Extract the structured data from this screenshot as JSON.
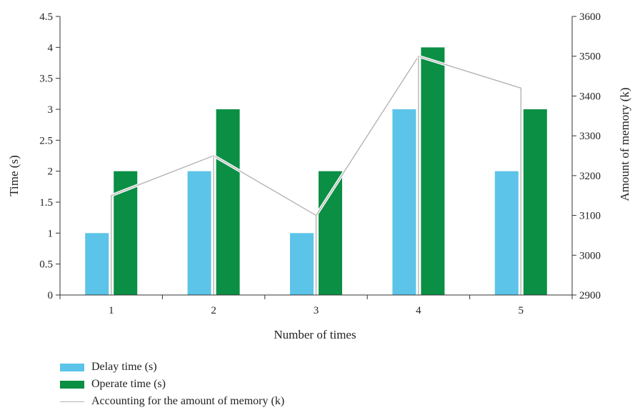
{
  "chart_data": {
    "type": "bar",
    "categories": [
      "1",
      "2",
      "3",
      "4",
      "5"
    ],
    "xlabel": "Number of times",
    "ylabel": "Time (s)",
    "y2label": "Amount of memory (k)",
    "ylim": [
      0,
      4.5
    ],
    "yticks": [
      "0",
      "0.5",
      "1",
      "1.5",
      "2",
      "2.5",
      "3",
      "3.5",
      "4",
      "4.5"
    ],
    "y2lim": [
      2900,
      3600
    ],
    "y2ticks": [
      "2900",
      "3000",
      "3100",
      "3200",
      "3300",
      "3400",
      "3500",
      "3600"
    ],
    "series": [
      {
        "name": "Delay time (s)",
        "type": "bar",
        "axis": "left",
        "values": [
          1,
          2,
          1,
          3,
          2
        ],
        "color": "#5bc4e8"
      },
      {
        "name": "Operate time (s)",
        "type": "bar",
        "axis": "left",
        "values": [
          2,
          3,
          2,
          4,
          3
        ],
        "color": "#0a8f44"
      },
      {
        "name": "Accounting for the amount of memory (k)",
        "type": "line",
        "axis": "right",
        "values": [
          3150,
          3250,
          3100,
          3500,
          3420
        ],
        "color": "#b5b5b5"
      }
    ],
    "grid": false,
    "legend_position": "bottom-left"
  }
}
